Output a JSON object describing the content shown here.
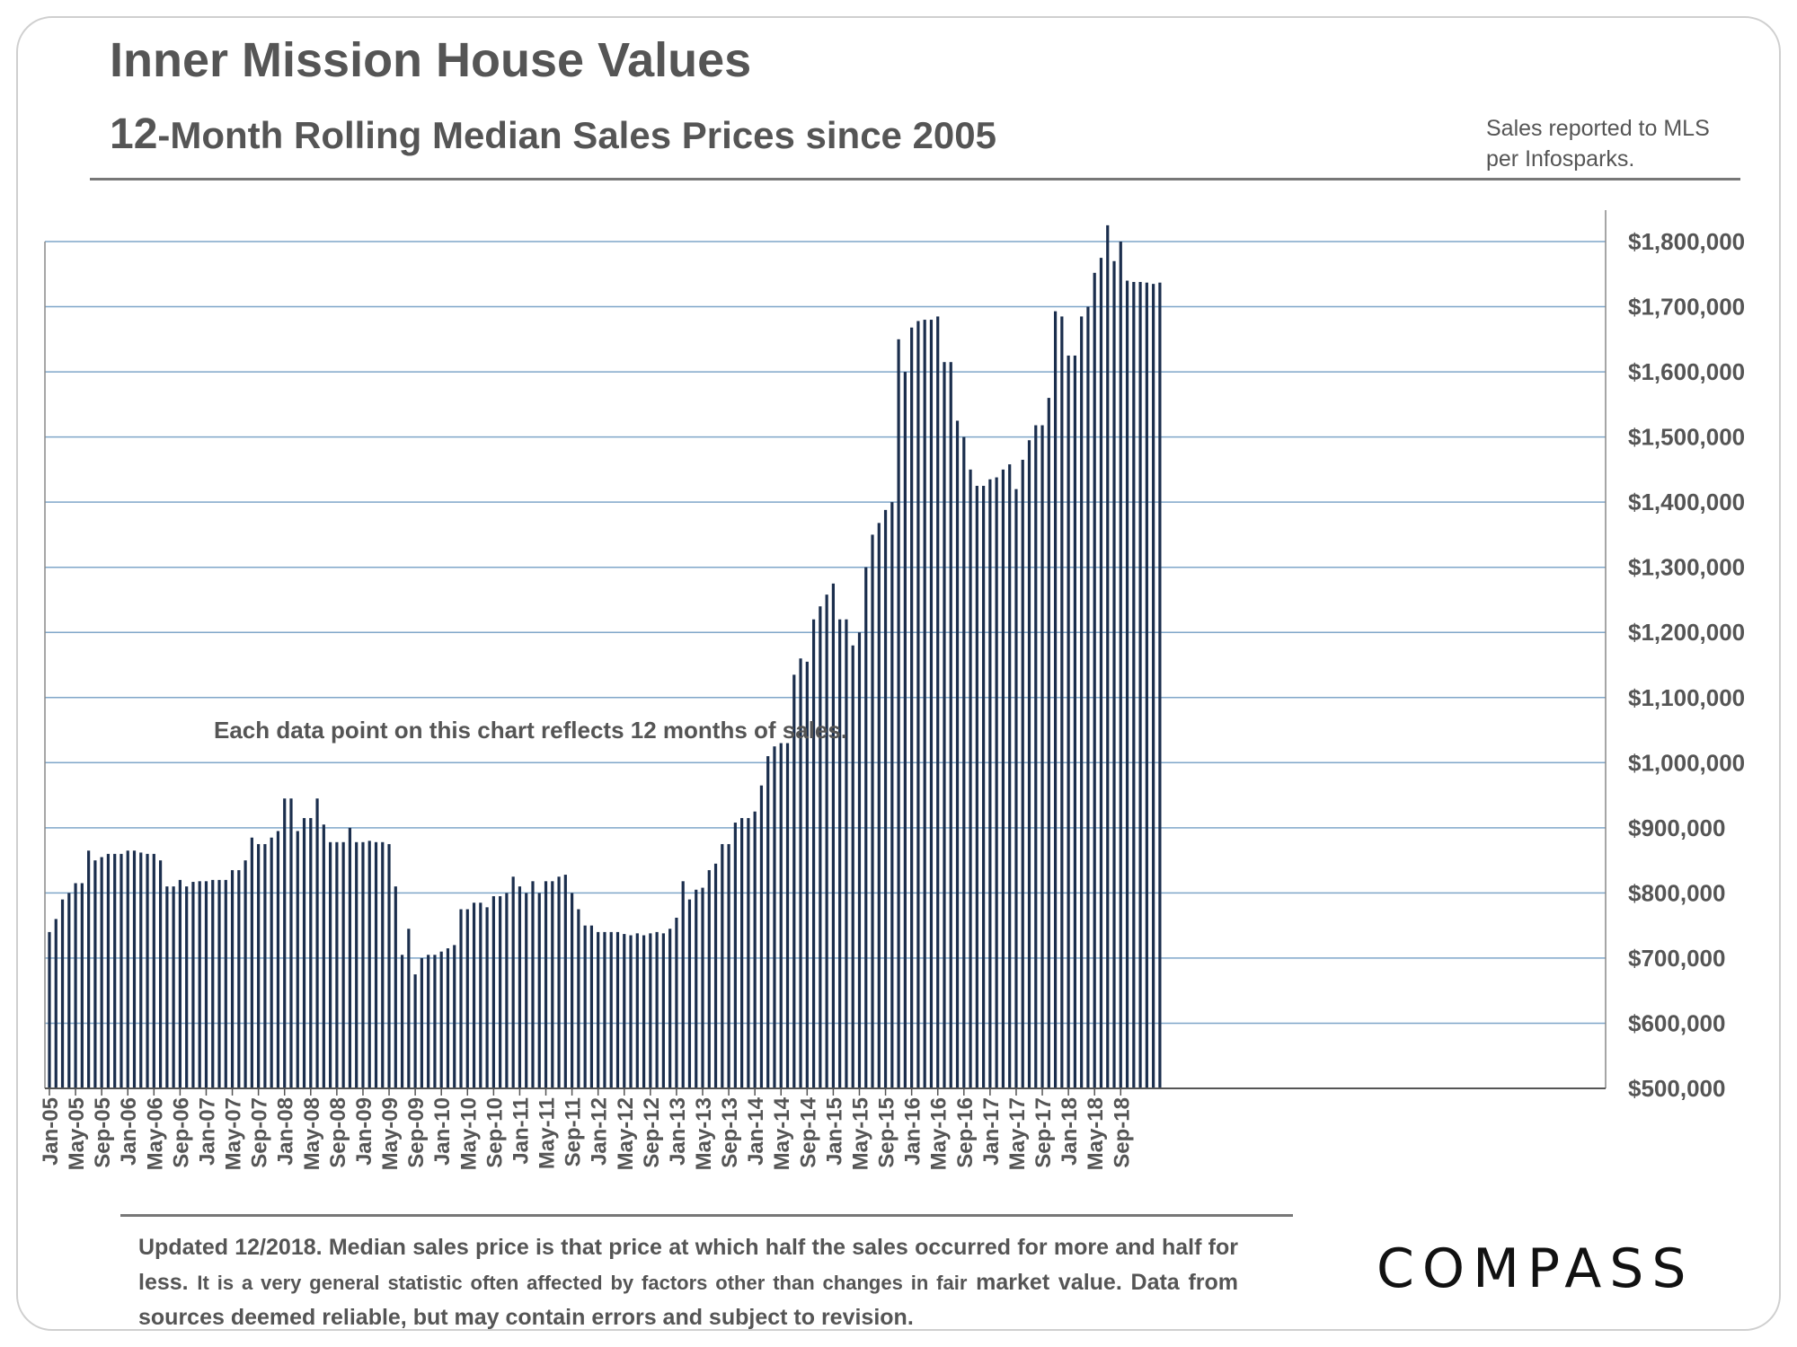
{
  "header": {
    "title": "Inner Mission House Values",
    "subtitle_lead": "12",
    "subtitle_rest": "-Month Rolling Median Sales Prices since 2005",
    "source_line1": "Sales reported to MLS",
    "source_line2": "per Infosparks."
  },
  "footer": {
    "text_bold": "Updated 12/2018. Median sales price is that price at which half the sales occurred for more and half for less.",
    "text_small": "It is a very general statistic often affected by factors other than changes in fair",
    "text_last": "market value. Data from sources deemed reliable, but may contain errors and subject to revision.",
    "logo": "COMPASS"
  },
  "colors": {
    "bar": "#1b2e4d",
    "grid": "#7fa6c9",
    "axis": "#888888"
  },
  "chart_data": {
    "type": "bar",
    "title": "Inner Mission House Values",
    "subtitle": "12-Month Rolling Median Sales Prices since 2005",
    "annotation": "Each data point on this chart reflects 12 months of sales.",
    "xlabel": "",
    "ylabel": "",
    "ylim": [
      500000,
      1800000
    ],
    "yticks": [
      500000,
      600000,
      700000,
      800000,
      900000,
      1000000,
      1100000,
      1200000,
      1300000,
      1400000,
      1500000,
      1600000,
      1700000,
      1800000
    ],
    "ytick_labels": [
      "$500,000",
      "$600,000",
      "$700,000",
      "$800,000",
      "$900,000",
      "$1,000,000",
      "$1,100,000",
      "$1,200,000",
      "$1,300,000",
      "$1,400,000",
      "$1,500,000",
      "$1,600,000",
      "$1,700,000",
      "$1,800,000"
    ],
    "start_month": "Jan-05",
    "x_tick_labels": [
      "Jan-05",
      "May-05",
      "Sep-05",
      "Jan-06",
      "May-06",
      "Sep-06",
      "Jan-07",
      "May-07",
      "Sep-07",
      "Jan-08",
      "May-08",
      "Sep-08",
      "Jan-09",
      "May-09",
      "Sep-09",
      "Jan-10",
      "May-10",
      "Sep-10",
      "Jan-11",
      "May-11",
      "Sep-11",
      "Jan-12",
      "May-12",
      "Sep-12",
      "Jan-13",
      "May-13",
      "Sep-13",
      "Jan-14",
      "May-14",
      "Sep-14",
      "Jan-15",
      "May-15",
      "Sep-15",
      "Jan-16",
      "May-16",
      "Sep-16",
      "Jan-17",
      "May-17",
      "Sep-17",
      "Jan-18",
      "May-18",
      "Sep-18"
    ],
    "grid": true,
    "values": [
      740000,
      760000,
      790000,
      800000,
      815000,
      815000,
      865000,
      850000,
      855000,
      860000,
      860000,
      860000,
      865000,
      865000,
      862000,
      860000,
      860000,
      850000,
      810000,
      810000,
      820000,
      810000,
      817000,
      818000,
      818000,
      820000,
      820000,
      820000,
      835000,
      835000,
      850000,
      885000,
      875000,
      875000,
      885000,
      895000,
      945000,
      945000,
      895000,
      915000,
      915000,
      945000,
      905000,
      878000,
      878000,
      878000,
      900000,
      878000,
      878000,
      880000,
      878000,
      878000,
      875000,
      810000,
      705000,
      745000,
      675000,
      700000,
      705000,
      705000,
      710000,
      715000,
      720000,
      775000,
      775000,
      785000,
      785000,
      778000,
      795000,
      795000,
      800000,
      825000,
      810000,
      800000,
      818000,
      800000,
      818000,
      818000,
      825000,
      828000,
      800000,
      775000,
      750000,
      750000,
      740000,
      740000,
      740000,
      740000,
      737000,
      735000,
      738000,
      735000,
      738000,
      740000,
      738000,
      745000,
      762000,
      818000,
      790000,
      805000,
      808000,
      835000,
      845000,
      875000,
      875000,
      908000,
      915000,
      915000,
      925000,
      965000,
      1010000,
      1025000,
      1030000,
      1030000,
      1135000,
      1160000,
      1155000,
      1220000,
      1240000,
      1258000,
      1275000,
      1220000,
      1220000,
      1180000,
      1200000,
      1300000,
      1350000,
      1368000,
      1388000,
      1400000,
      1650000,
      1600000,
      1668000,
      1678000,
      1680000,
      1680000,
      1685000,
      1615000,
      1615000,
      1525000,
      1500000,
      1450000,
      1425000,
      1425000,
      1435000,
      1438000,
      1450000,
      1458000,
      1420000,
      1465000,
      1495000,
      1518000,
      1518000,
      1560000,
      1693000,
      1685000,
      1625000,
      1625000,
      1685000,
      1700000,
      1752000,
      1775000,
      1825000,
      1770000,
      1800000,
      1740000,
      1738000,
      1738000,
      1737000,
      1735000,
      1737000
    ]
  }
}
